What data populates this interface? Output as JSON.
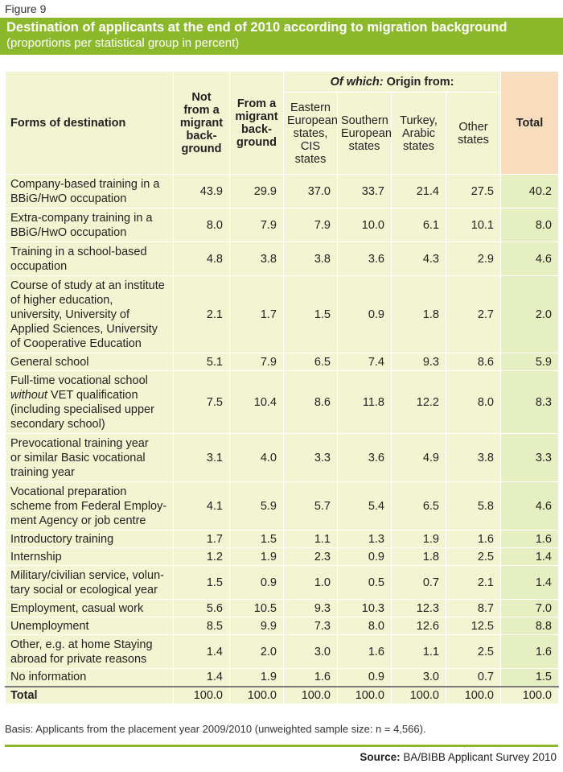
{
  "figure_label": "Figure 9",
  "title": "Destination of applicants at the end of 2010 according to migration background",
  "subtitle": "(proportions per statistical group in percent)",
  "header": {
    "forms": "Forms of destination",
    "not_migrant": [
      "Not",
      "from a",
      "migrant",
      "back-",
      "ground"
    ],
    "from_migrant": [
      "From a",
      "migrant",
      "back-",
      "ground"
    ],
    "of_which_em": "Of which:",
    "of_which_rest": " Origin from:",
    "eastern": [
      "Eastern",
      "European",
      "states,",
      "CIS",
      "states"
    ],
    "southern": [
      "Southern",
      "European",
      "states"
    ],
    "turkey": [
      "Turkey,",
      "Arabic",
      "states"
    ],
    "other": [
      "Other",
      "states"
    ],
    "total": "Total"
  },
  "rows": [
    {
      "label": [
        "Company-based training in a",
        "BBiG/HwO occupation"
      ],
      "v": [
        "43.9",
        "29.9",
        "37.0",
        "33.7",
        "21.4",
        "27.5",
        "40.2"
      ]
    },
    {
      "label": [
        "Extra-company training in a",
        "BBiG/HwO occupation"
      ],
      "v": [
        "8.0",
        "7.9",
        "7.9",
        "10.0",
        "6.1",
        "10.1",
        "8.0"
      ]
    },
    {
      "label": [
        "Training in a school-based",
        "occupation"
      ],
      "v": [
        "4.8",
        "3.8",
        "3.8",
        "3.6",
        "4.3",
        "2.9",
        "4.6"
      ]
    },
    {
      "label": [
        "Course of study at an institute",
        "of higher education,",
        "university, University of",
        "Applied Sciences, University",
        "of Cooperative Education"
      ],
      "v": [
        "2.1",
        "1.7",
        "1.5",
        "0.9",
        "1.8",
        "2.7",
        "2.0"
      ]
    },
    {
      "label": [
        "General school"
      ],
      "v": [
        "5.1",
        "7.9",
        "6.5",
        "7.4",
        "9.3",
        "8.6",
        "5.9"
      ]
    },
    {
      "label": [
        "Full-time vocational school",
        "without VET qualification",
        "(including specialised upper",
        "secondary school)"
      ],
      "v": [
        "7.5",
        "10.4",
        "8.6",
        "11.8",
        "12.2",
        "8.0",
        "8.3"
      ]
    },
    {
      "label": [
        "Prevocational training year",
        "or similar Basic vocational",
        "training year"
      ],
      "v": [
        "3.1",
        "4.0",
        "3.3",
        "3.6",
        "4.9",
        "3.8",
        "3.3"
      ]
    },
    {
      "label": [
        "Vocational preparation",
        "scheme from Federal Employ-",
        "ment Agency or job centre"
      ],
      "v": [
        "4.1",
        "5.9",
        "5.7",
        "5.4",
        "6.5",
        "5.8",
        "4.6"
      ]
    },
    {
      "label": [
        "Introductory training"
      ],
      "v": [
        "1.7",
        "1.5",
        "1.1",
        "1.3",
        "1.9",
        "1.6",
        "1.6"
      ]
    },
    {
      "label": [
        "Internship"
      ],
      "v": [
        "1.2",
        "1.9",
        "2.3",
        "0.9",
        "1.8",
        "2.5",
        "1.4"
      ]
    },
    {
      "label": [
        "Military/civilian service, volun-",
        "tary social or ecological year"
      ],
      "v": [
        "1.5",
        "0.9",
        "1.0",
        "0.5",
        "0.7",
        "2.1",
        "1.4"
      ]
    },
    {
      "label": [
        "Employment, casual work"
      ],
      "v": [
        "5.6",
        "10.5",
        "9.3",
        "10.3",
        "12.3",
        "8.7",
        "7.0"
      ]
    },
    {
      "label": [
        "Unemployment"
      ],
      "v": [
        "8.5",
        "9.9",
        "7.3",
        "8.0",
        "12.6",
        "12.5",
        "8.8"
      ]
    },
    {
      "label": [
        "Other, e.g. at home Staying",
        "abroad for private reasons"
      ],
      "v": [
        "1.4",
        "2.0",
        "3.0",
        "1.6",
        "1.1",
        "2.5",
        "1.6"
      ]
    },
    {
      "label": [
        "No information"
      ],
      "v": [
        "1.4",
        "1.9",
        "1.6",
        "0.9",
        "3.0",
        "0.7",
        "1.5"
      ]
    }
  ],
  "total_row": {
    "label": "Total",
    "v": [
      "100.0",
      "100.0",
      "100.0",
      "100.0",
      "100.0",
      "100.0",
      "100.0"
    ]
  },
  "basis": "Basis: Applicants from the placement year 2009/2010 (unweighted sample size: n = 4,566).",
  "source_label": "Source:",
  "source_text": " BA/BIBB Applicant Survey 2010"
}
